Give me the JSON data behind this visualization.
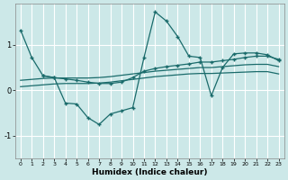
{
  "xlabel": "Humidex (Indice chaleur)",
  "bg_color": "#cce8e8",
  "grid_color": "#ffffff",
  "line_color": "#1a6b6b",
  "xlim": [
    -0.5,
    23.5
  ],
  "ylim": [
    -1.5,
    1.9
  ],
  "yticks": [
    -1,
    0,
    1
  ],
  "xticks": [
    0,
    1,
    2,
    3,
    4,
    5,
    6,
    7,
    8,
    9,
    10,
    11,
    12,
    13,
    14,
    15,
    16,
    17,
    18,
    19,
    20,
    21,
    22,
    23
  ],
  "line1_x": [
    0,
    1,
    2,
    3,
    4,
    5,
    6,
    7,
    8,
    9,
    10,
    11,
    12,
    13,
    14,
    15,
    16,
    17,
    18,
    19,
    20,
    21,
    22,
    23
  ],
  "line1_y": [
    1.32,
    0.72,
    0.32,
    0.28,
    -0.28,
    -0.3,
    -0.6,
    -0.75,
    -0.52,
    -0.45,
    -0.38,
    0.72,
    1.72,
    1.52,
    1.18,
    0.75,
    0.72,
    -0.12,
    0.5,
    0.8,
    0.82,
    0.82,
    0.78,
    0.65
  ],
  "line2_x": [
    2,
    3,
    4,
    5,
    6,
    7,
    8,
    9,
    10,
    11,
    12,
    13,
    14,
    15,
    16,
    17,
    18,
    19,
    20,
    21,
    22,
    23
  ],
  "line2_y": [
    0.32,
    0.28,
    0.25,
    0.22,
    0.18,
    0.15,
    0.15,
    0.18,
    0.28,
    0.42,
    0.48,
    0.52,
    0.55,
    0.58,
    0.62,
    0.62,
    0.65,
    0.68,
    0.72,
    0.75,
    0.75,
    0.68
  ],
  "line3_x": [
    0,
    1,
    2,
    3,
    4,
    5,
    6,
    7,
    8,
    9,
    10,
    11,
    12,
    13,
    14,
    15,
    16,
    17,
    18,
    19,
    20,
    21,
    22,
    23
  ],
  "line3_y": [
    0.22,
    0.24,
    0.26,
    0.27,
    0.27,
    0.27,
    0.27,
    0.28,
    0.3,
    0.33,
    0.36,
    0.39,
    0.42,
    0.44,
    0.46,
    0.48,
    0.5,
    0.5,
    0.52,
    0.54,
    0.56,
    0.57,
    0.57,
    0.52
  ],
  "line4_x": [
    0,
    1,
    2,
    3,
    4,
    5,
    6,
    7,
    8,
    9,
    10,
    11,
    12,
    13,
    14,
    15,
    16,
    17,
    18,
    19,
    20,
    21,
    22,
    23
  ],
  "line4_y": [
    0.08,
    0.1,
    0.12,
    0.14,
    0.15,
    0.15,
    0.15,
    0.16,
    0.18,
    0.21,
    0.24,
    0.27,
    0.3,
    0.32,
    0.34,
    0.36,
    0.37,
    0.37,
    0.38,
    0.39,
    0.4,
    0.41,
    0.41,
    0.36
  ]
}
